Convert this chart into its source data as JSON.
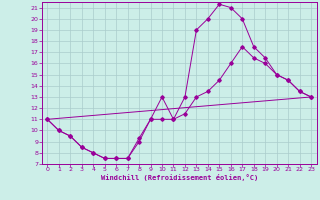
{
  "xlabel": "Windchill (Refroidissement éolien,°C)",
  "bg_color": "#cceee8",
  "grid_color": "#aacccc",
  "line_color": "#990099",
  "xlim": [
    -0.5,
    23.5
  ],
  "ylim": [
    7,
    21.5
  ],
  "xticks": [
    0,
    1,
    2,
    3,
    4,
    5,
    6,
    7,
    8,
    9,
    10,
    11,
    12,
    13,
    14,
    15,
    16,
    17,
    18,
    19,
    20,
    21,
    22,
    23
  ],
  "yticks": [
    7,
    8,
    9,
    10,
    11,
    12,
    13,
    14,
    15,
    16,
    17,
    18,
    19,
    20,
    21
  ],
  "line1_x": [
    0,
    1,
    2,
    3,
    4,
    5,
    6,
    7,
    8,
    9,
    10,
    11,
    12,
    13,
    14,
    15,
    16,
    17,
    18,
    19,
    20,
    21,
    22,
    23
  ],
  "line1_y": [
    11,
    10,
    9.5,
    8.5,
    8,
    7.5,
    7.5,
    7.5,
    9,
    11,
    13,
    11,
    13,
    19,
    20,
    21.3,
    21,
    20,
    17.5,
    16.5,
    15,
    14.5,
    13.5,
    13
  ],
  "line2_x": [
    0,
    1,
    2,
    3,
    4,
    5,
    6,
    7,
    8,
    9,
    10,
    11,
    12,
    13,
    14,
    15,
    16,
    17,
    18,
    19,
    20,
    21,
    22,
    23
  ],
  "line2_y": [
    11,
    10,
    9.5,
    8.5,
    8,
    7.5,
    7.5,
    7.5,
    9.3,
    11,
    11,
    11,
    11.5,
    13,
    13.5,
    14.5,
    16,
    17.5,
    16.5,
    16,
    15,
    14.5,
    13.5,
    13
  ],
  "line3_x": [
    0,
    23
  ],
  "line3_y": [
    11,
    13
  ]
}
